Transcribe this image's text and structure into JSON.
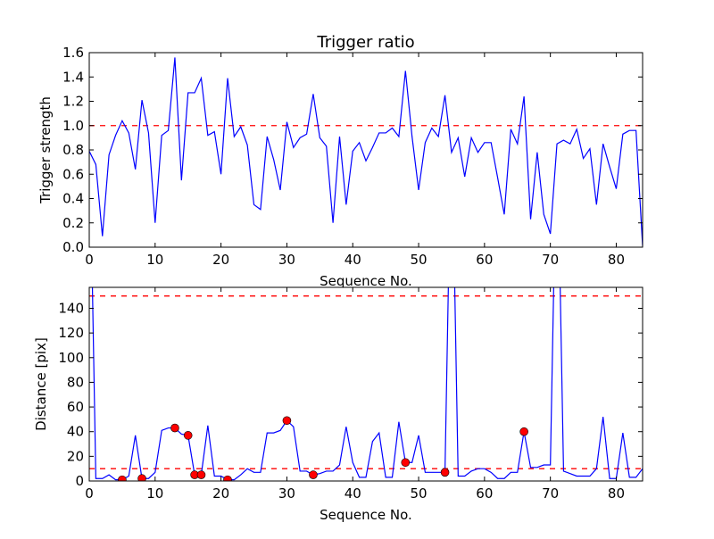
{
  "chart_data": [
    {
      "type": "line",
      "title": "Trigger ratio",
      "xlabel": "Sequence No.",
      "ylabel": "Trigger strength",
      "xlim": [
        0,
        84
      ],
      "ylim": [
        0,
        1.6
      ],
      "xticks": [
        0,
        10,
        20,
        30,
        40,
        50,
        60,
        70,
        80
      ],
      "yticks": [
        0.0,
        0.2,
        0.4,
        0.6,
        0.8,
        1.0,
        1.2,
        1.4,
        1.6
      ],
      "ytick_labels": [
        "0.0",
        "0.2",
        "0.4",
        "0.6",
        "0.8",
        "1.0",
        "1.2",
        "1.4",
        "1.6"
      ],
      "series": [
        {
          "name": "trigger strength",
          "color": "#0000ff",
          "values": [
            0.79,
            0.68,
            0.09,
            0.76,
            0.92,
            1.04,
            0.94,
            0.64,
            1.21,
            0.94,
            0.2,
            0.92,
            0.96,
            1.56,
            0.55,
            1.27,
            1.27,
            1.39,
            0.92,
            0.95,
            0.6,
            1.39,
            0.91,
            0.99,
            0.84,
            0.35,
            0.31,
            0.91,
            0.72,
            0.47,
            1.03,
            0.82,
            0.9,
            0.93,
            1.26,
            0.9,
            0.83,
            0.2,
            0.91,
            0.35,
            0.79,
            0.86,
            0.71,
            0.82,
            0.94,
            0.94,
            0.98,
            0.91,
            1.45,
            0.91,
            0.47,
            0.86,
            0.98,
            0.91,
            1.25,
            0.78,
            0.9,
            0.58,
            0.9,
            0.78,
            0.86,
            0.86,
            0.57,
            0.27,
            0.97,
            0.85,
            1.24,
            0.23,
            0.78,
            0.27,
            0.11,
            0.85,
            0.88,
            0.85,
            0.97,
            0.73,
            0.81,
            0.35,
            0.85,
            0.66,
            0.48,
            0.93,
            0.96,
            0.96,
            0.01
          ]
        }
      ],
      "hlines": [
        {
          "y": 1.0,
          "color": "#ff0000",
          "style": "dashed"
        }
      ]
    },
    {
      "type": "line",
      "title": "",
      "xlabel": "Sequence No.",
      "ylabel": "Distance [pix]",
      "xlim": [
        0,
        84
      ],
      "ylim": [
        0,
        157
      ],
      "xticks": [
        0,
        10,
        20,
        30,
        40,
        50,
        60,
        70,
        80
      ],
      "yticks": [
        0,
        20,
        40,
        60,
        80,
        100,
        120,
        140
      ],
      "ytick_labels": [
        "0",
        "20",
        "40",
        "60",
        "80",
        "100",
        "120",
        "140"
      ],
      "series": [
        {
          "name": "distance",
          "color": "#0000ff",
          "values": [
            300,
            2,
            2,
            5,
            1,
            1,
            4,
            37,
            2,
            2,
            7,
            41,
            43,
            43,
            38,
            37,
            5,
            5,
            45,
            4,
            4,
            1,
            1,
            5,
            10,
            7,
            7,
            39,
            39,
            41,
            49,
            44,
            8,
            8,
            5,
            6,
            8,
            8,
            13,
            44,
            15,
            3,
            3,
            32,
            39,
            3,
            3,
            48,
            15,
            15,
            37,
            7,
            7,
            7,
            7,
            300,
            4,
            4,
            8,
            10,
            10,
            7,
            2,
            2,
            7,
            7,
            40,
            11,
            11,
            13,
            13,
            300,
            8,
            6,
            4,
            4,
            4,
            10,
            52,
            2,
            2,
            39,
            3,
            3,
            10
          ]
        }
      ],
      "markers": {
        "color": "#ff0000",
        "x": [
          5,
          8,
          13,
          15,
          16,
          17,
          21,
          30,
          34,
          48,
          54,
          66
        ],
        "y": [
          1,
          2,
          43,
          37,
          5,
          5,
          1,
          49,
          5,
          15,
          7,
          40
        ]
      },
      "hlines": [
        {
          "y": 10,
          "color": "#ff0000",
          "style": "dashed"
        },
        {
          "y": 150,
          "color": "#ff0000",
          "style": "dashed"
        }
      ]
    }
  ]
}
